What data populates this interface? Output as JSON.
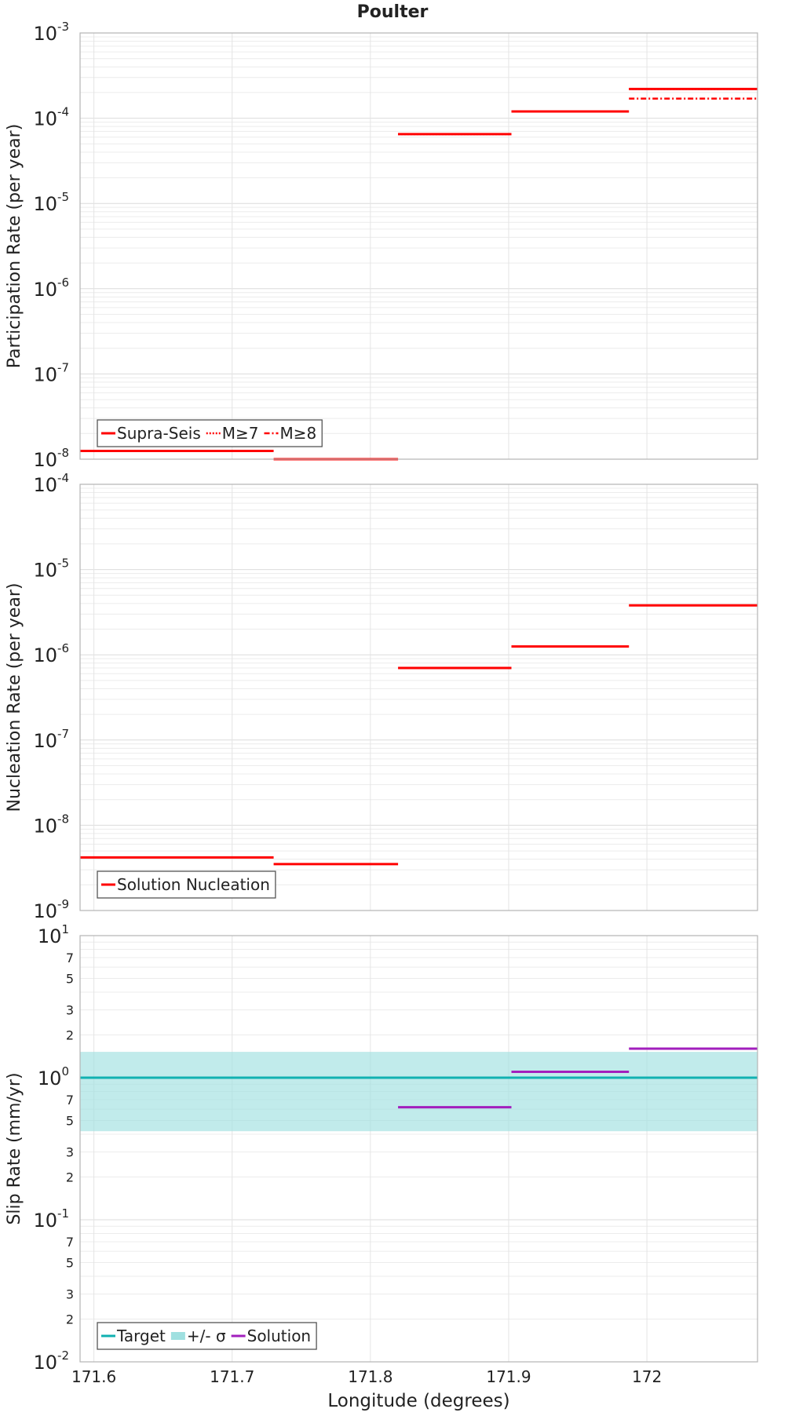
{
  "title": "Poulter",
  "chart_data": {
    "type": "line",
    "title": "Poulter",
    "xlabel": "Longitude (degrees)",
    "xlim": [
      171.59,
      172.08
    ],
    "x_ticks": [
      "171.6",
      "171.7",
      "171.8",
      "171.9",
      "172"
    ],
    "x_tick_values": [
      171.6,
      171.7,
      171.8,
      171.9,
      172.0
    ],
    "panels": [
      {
        "id": "participation",
        "ylabel": "Participation Rate (per year)",
        "yscale": "log",
        "ylim": [
          1e-08,
          0.001
        ],
        "y_ticks": [
          {
            "value": 1e-08,
            "base": "10",
            "exp": "-8"
          },
          {
            "value": 1e-07,
            "base": "10",
            "exp": "-7"
          },
          {
            "value": 1e-06,
            "base": "10",
            "exp": "-6"
          },
          {
            "value": 1e-05,
            "base": "10",
            "exp": "-5"
          },
          {
            "value": 0.0001,
            "base": "10",
            "exp": "-4"
          },
          {
            "value": 0.001,
            "base": "10",
            "exp": "-3"
          }
        ],
        "legend": {
          "position": "bottom-left",
          "entries": [
            "Supra-Seis",
            "M≥7",
            "M≥8"
          ]
        },
        "series": [
          {
            "name": "Supra-Seis",
            "color": "#ff0000",
            "dash": "solid",
            "segments": [
              {
                "x0": 171.59,
                "x1": 171.73,
                "y": 1.25e-08
              },
              {
                "x0": 171.73,
                "x1": 171.82,
                "y": 1e-08
              },
              {
                "x0": 171.82,
                "x1": 171.902,
                "y": 6.5e-05
              },
              {
                "x0": 171.902,
                "x1": 171.987,
                "y": 0.00012
              },
              {
                "x0": 171.987,
                "x1": 172.08,
                "y": 0.00022
              }
            ]
          },
          {
            "name": "M≥7",
            "color": "#ff0000",
            "dash": "dotted",
            "segments": [
              {
                "x0": 171.82,
                "x1": 171.902,
                "y": 6.5e-05
              },
              {
                "x0": 171.987,
                "x1": 172.08,
                "y": 0.00022
              }
            ]
          },
          {
            "name": "M≥8",
            "color": "#ff0000",
            "dash": "dashdot",
            "segments": [
              {
                "x0": 171.987,
                "x1": 172.08,
                "y": 0.00017
              }
            ]
          }
        ]
      },
      {
        "id": "nucleation",
        "ylabel": "Nucleation Rate (per year)",
        "yscale": "log",
        "ylim": [
          1e-09,
          0.0001
        ],
        "y_ticks": [
          {
            "value": 1e-09,
            "base": "10",
            "exp": "-9"
          },
          {
            "value": 1e-08,
            "base": "10",
            "exp": "-8"
          },
          {
            "value": 1e-07,
            "base": "10",
            "exp": "-7"
          },
          {
            "value": 1e-06,
            "base": "10",
            "exp": "-6"
          },
          {
            "value": 1e-05,
            "base": "10",
            "exp": "-5"
          },
          {
            "value": 0.0001,
            "base": "10",
            "exp": "-4"
          }
        ],
        "legend": {
          "position": "bottom-left",
          "entries": [
            "Solution Nucleation"
          ]
        },
        "series": [
          {
            "name": "Solution Nucleation",
            "color": "#ff0000",
            "dash": "solid",
            "segments": [
              {
                "x0": 171.59,
                "x1": 171.73,
                "y": 4.2e-09
              },
              {
                "x0": 171.73,
                "x1": 171.82,
                "y": 3.5e-09
              },
              {
                "x0": 171.82,
                "x1": 171.902,
                "y": 7e-07
              },
              {
                "x0": 171.902,
                "x1": 171.987,
                "y": 1.25e-06
              },
              {
                "x0": 171.987,
                "x1": 172.08,
                "y": 3.8e-06
              }
            ]
          }
        ]
      },
      {
        "id": "slip",
        "ylabel": "Slip Rate (mm/yr)",
        "yscale": "log",
        "ylim": [
          0.01,
          10
        ],
        "y_ticks": [
          {
            "value": 0.01,
            "base": "10",
            "exp": "-2"
          },
          {
            "value": 0.1,
            "base": "10",
            "exp": "-1"
          },
          {
            "value": 1,
            "base": "10",
            "exp": "0"
          },
          {
            "value": 10,
            "base": "10",
            "exp": "1"
          }
        ],
        "y_minor_labels": [
          {
            "value": 0.02,
            "label": "2"
          },
          {
            "value": 0.03,
            "label": "3"
          },
          {
            "value": 0.05,
            "label": "5"
          },
          {
            "value": 0.07,
            "label": "7"
          },
          {
            "value": 0.2,
            "label": "2"
          },
          {
            "value": 0.3,
            "label": "3"
          },
          {
            "value": 0.5,
            "label": "5"
          },
          {
            "value": 0.7,
            "label": "7"
          },
          {
            "value": 2,
            "label": "2"
          },
          {
            "value": 3,
            "label": "3"
          },
          {
            "value": 5,
            "label": "5"
          },
          {
            "value": 7,
            "label": "7"
          }
        ],
        "legend": {
          "position": "bottom-left",
          "entries": [
            "Target",
            "+/- σ",
            "Solution"
          ]
        },
        "band": {
          "name": "+/- σ",
          "color": "#9fe0e0",
          "y_low": 0.42,
          "y_high": 1.52,
          "x0": 171.59,
          "x1": 172.08
        },
        "series": [
          {
            "name": "Target",
            "color": "#11b1b1",
            "dash": "solid",
            "segments": [
              {
                "x0": 171.59,
                "x1": 172.08,
                "y": 1.0
              }
            ]
          },
          {
            "name": "Solution",
            "color": "#a21fbd",
            "dash": "solid",
            "segments": [
              {
                "x0": 171.82,
                "x1": 171.902,
                "y": 0.62
              },
              {
                "x0": 171.902,
                "x1": 171.987,
                "y": 1.1
              },
              {
                "x0": 171.987,
                "x1": 172.08,
                "y": 1.6
              }
            ]
          }
        ]
      }
    ]
  }
}
